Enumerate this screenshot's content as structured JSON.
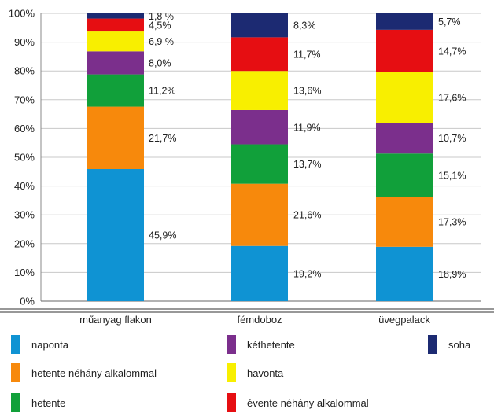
{
  "chart_data": {
    "type": "bar",
    "stacked": true,
    "percent": true,
    "categories": [
      "műanyag flakon",
      "fémdoboz",
      "üvegpalack"
    ],
    "yticks": [
      "0%",
      "10%",
      "20%",
      "30%",
      "40%",
      "50%",
      "60%",
      "70%",
      "80%",
      "90%",
      "100%"
    ],
    "ylim": [
      0,
      100
    ],
    "legend_position": "bottom",
    "series": [
      {
        "name": "naponta",
        "color": "#0f93d3",
        "values": [
          45.9,
          19.2,
          18.9
        ],
        "labels": [
          "45,9%",
          "19,2%",
          "18,9%"
        ]
      },
      {
        "name": "hetente néhány alkalommal",
        "color": "#f7890c",
        "values": [
          21.7,
          21.6,
          17.3
        ],
        "labels": [
          "21,7%",
          "21,6%",
          "17,3%"
        ]
      },
      {
        "name": "hetente",
        "color": "#11a03a",
        "values": [
          11.2,
          13.7,
          15.1
        ],
        "labels": [
          "11,2%",
          "13,7%",
          "15,1%"
        ]
      },
      {
        "name": "kéthetente",
        "color": "#7b2f8c",
        "values": [
          8.0,
          11.9,
          10.7
        ],
        "labels": [
          "8,0%",
          "11,9%",
          "10,7%"
        ]
      },
      {
        "name": "havonta",
        "color": "#f8ef00",
        "values": [
          6.9,
          13.6,
          17.6
        ],
        "labels": [
          "6,9 %",
          "13,6%",
          "17,6%"
        ]
      },
      {
        "name": "évente néhány alkalommal",
        "color": "#e60e12",
        "values": [
          4.5,
          11.7,
          14.7
        ],
        "labels": [
          "4,5%",
          "11,7%",
          "14,7%"
        ]
      },
      {
        "name": "soha",
        "color": "#1c2a72",
        "values": [
          1.8,
          8.3,
          5.7
        ],
        "labels": [
          "1,8 %",
          "8,3%",
          "5,7%"
        ]
      }
    ]
  }
}
